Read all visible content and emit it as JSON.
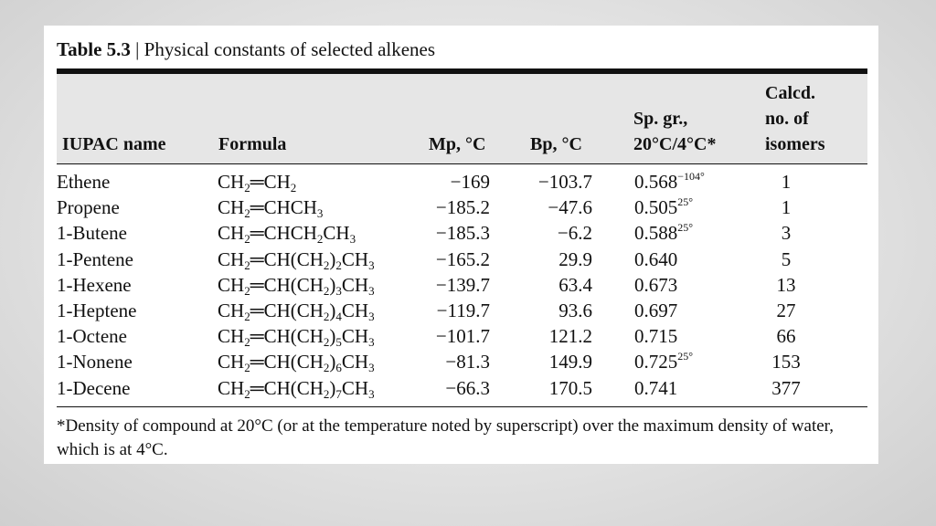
{
  "caption": {
    "label": "Table 5.3",
    "separator": " | ",
    "title": "Physical constants of selected alkenes"
  },
  "headers": {
    "name": "IUPAC name",
    "formula": "Formula",
    "mp": "Mp, °C",
    "bp": "Bp, °C",
    "spgr": [
      "Sp. gr.,",
      "20°C/4°C*"
    ],
    "isomers": [
      "Calcd.",
      "no. of",
      "isomers"
    ]
  },
  "rows": [
    {
      "name": "Ethene",
      "formula": [
        [
          "CH",
          ""
        ],
        [
          "2",
          "sub"
        ],
        [
          "═CH",
          ""
        ],
        [
          "2",
          "sub"
        ]
      ],
      "mp": "−169",
      "bp": "−103.7",
      "spgr": "0.568",
      "spgr_sup": "−104°",
      "isomers": "1"
    },
    {
      "name": "Propene",
      "formula": [
        [
          "CH",
          ""
        ],
        [
          "2",
          "sub"
        ],
        [
          "═CHCH",
          ""
        ],
        [
          "3",
          "sub"
        ]
      ],
      "mp": "−185.2",
      "bp": "−47.6",
      "spgr": "0.505",
      "spgr_sup": "25°",
      "isomers": "1"
    },
    {
      "name": "1-Butene",
      "formula": [
        [
          "CH",
          ""
        ],
        [
          "2",
          "sub"
        ],
        [
          "═CHCH",
          ""
        ],
        [
          "2",
          "sub"
        ],
        [
          "CH",
          ""
        ],
        [
          "3",
          "sub"
        ]
      ],
      "mp": "−185.3",
      "bp": "−6.2",
      "spgr": "0.588",
      "spgr_sup": "25°",
      "isomers": "3"
    },
    {
      "name": "1-Pentene",
      "formula": [
        [
          "CH",
          ""
        ],
        [
          "2",
          "sub"
        ],
        [
          "═CH(CH",
          ""
        ],
        [
          "2",
          "sub"
        ],
        [
          ")",
          ""
        ],
        [
          "2",
          "sub"
        ],
        [
          "CH",
          ""
        ],
        [
          "3",
          "sub"
        ]
      ],
      "mp": "−165.2",
      "bp": "29.9",
      "spgr": "0.640",
      "spgr_sup": "",
      "isomers": "5"
    },
    {
      "name": "1-Hexene",
      "formula": [
        [
          "CH",
          ""
        ],
        [
          "2",
          "sub"
        ],
        [
          "═CH(CH",
          ""
        ],
        [
          "2",
          "sub"
        ],
        [
          ")",
          ""
        ],
        [
          "3",
          "sub"
        ],
        [
          "CH",
          ""
        ],
        [
          "3",
          "sub"
        ]
      ],
      "mp": "−139.7",
      "bp": "63.4",
      "spgr": "0.673",
      "spgr_sup": "",
      "isomers": "13"
    },
    {
      "name": "1-Heptene",
      "formula": [
        [
          "CH",
          ""
        ],
        [
          "2",
          "sub"
        ],
        [
          "═CH(CH",
          ""
        ],
        [
          "2",
          "sub"
        ],
        [
          ")",
          ""
        ],
        [
          "4",
          "sub"
        ],
        [
          "CH",
          ""
        ],
        [
          "3",
          "sub"
        ]
      ],
      "mp": "−119.7",
      "bp": "93.6",
      "spgr": "0.697",
      "spgr_sup": "",
      "isomers": "27"
    },
    {
      "name": "1-Octene",
      "formula": [
        [
          "CH",
          ""
        ],
        [
          "2",
          "sub"
        ],
        [
          "═CH(CH",
          ""
        ],
        [
          "2",
          "sub"
        ],
        [
          ")",
          ""
        ],
        [
          "5",
          "sub"
        ],
        [
          "CH",
          ""
        ],
        [
          "3",
          "sub"
        ]
      ],
      "mp": "−101.7",
      "bp": "121.2",
      "spgr": "0.715",
      "spgr_sup": "",
      "isomers": "66"
    },
    {
      "name": "1-Nonene",
      "formula": [
        [
          "CH",
          ""
        ],
        [
          "2",
          "sub"
        ],
        [
          "═CH(CH",
          ""
        ],
        [
          "2",
          "sub"
        ],
        [
          ")",
          ""
        ],
        [
          "6",
          "sub"
        ],
        [
          "CH",
          ""
        ],
        [
          "3",
          "sub"
        ]
      ],
      "mp": "−81.3",
      "bp": "149.9",
      "spgr": "0.725",
      "spgr_sup": "25°",
      "isomers": "153"
    },
    {
      "name": "1-Decene",
      "formula": [
        [
          "CH",
          ""
        ],
        [
          "2",
          "sub"
        ],
        [
          "═CH(CH",
          ""
        ],
        [
          "2",
          "sub"
        ],
        [
          ")",
          ""
        ],
        [
          "7",
          "sub"
        ],
        [
          "CH",
          ""
        ],
        [
          "3",
          "sub"
        ]
      ],
      "mp": "−66.3",
      "bp": "170.5",
      "spgr": "0.741",
      "spgr_sup": "",
      "isomers": "377"
    }
  ],
  "footnote": "*Density of compound at 20°C (or at the temperature noted by superscript) over the maximum density of water, which is at 4°C."
}
